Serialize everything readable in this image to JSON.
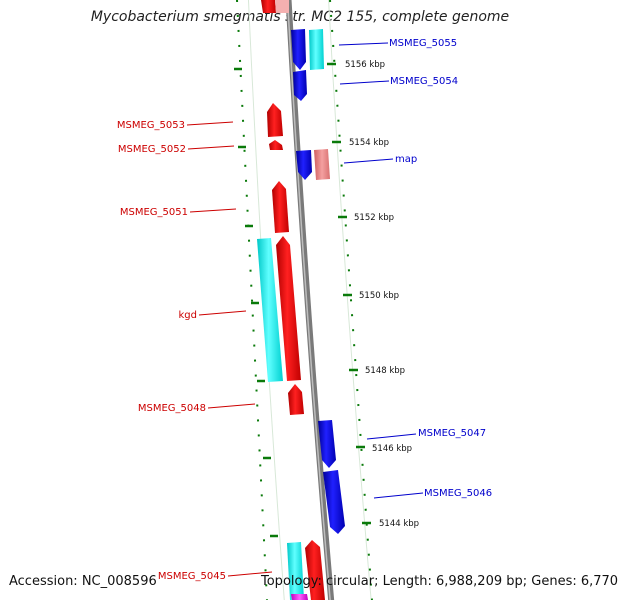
{
  "title": "Mycobacterium smegmatis str. MC2 155, complete genome",
  "accession": "Accession: NC_008596",
  "topology": "Topology: circular; Length: 6,988,209 bp; Genes: 6,770",
  "colors": {
    "forward_gene": "#ff0000",
    "reverse_gene": "#0000ff",
    "rna_feature": "#00ffff",
    "tick": "#0a7a0a",
    "backbone": "#888888",
    "forward_label": "#cc0000",
    "reverse_label": "#0000cc"
  },
  "scale_ticks": [
    "5156 kbp",
    "5154 kbp",
    "5152 kbp",
    "5150 kbp",
    "5148 kbp",
    "5146 kbp",
    "5144 kbp"
  ],
  "gene_labels": [
    {
      "label": "MSMEG_5055",
      "strand": "reverse"
    },
    {
      "label": "MSMEG_5054",
      "strand": "reverse"
    },
    {
      "label": "MSMEG_5053",
      "strand": "forward"
    },
    {
      "label": "MSMEG_5052",
      "strand": "forward"
    },
    {
      "label": "map",
      "strand": "reverse"
    },
    {
      "label": "MSMEG_5051",
      "strand": "forward"
    },
    {
      "label": "kgd",
      "strand": "forward"
    },
    {
      "label": "MSMEG_5048",
      "strand": "forward"
    },
    {
      "label": "MSMEG_5047",
      "strand": "reverse"
    },
    {
      "label": "MSMEG_5046",
      "strand": "reverse"
    },
    {
      "label": "MSMEG_5045",
      "strand": "forward"
    }
  ]
}
